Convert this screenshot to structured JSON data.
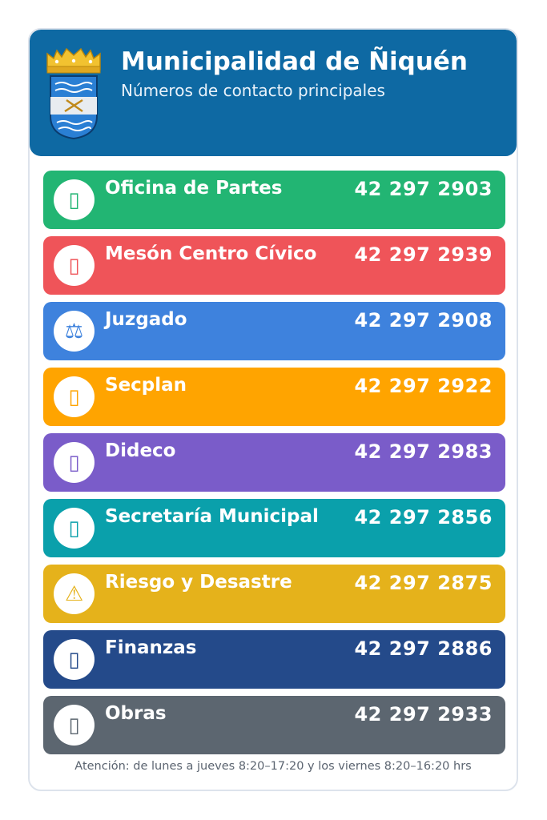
{
  "header": {
    "title": "Municipalidad de Ñiquén",
    "subtitle": "Números de contacto principales",
    "crest_icon": "municipal-crest-icon",
    "background_color": "#0e69a3"
  },
  "contacts": [
    {
      "label": "Oficina de Partes",
      "phone": "42 297 2903",
      "color": "#22b573",
      "icon": "document-icon",
      "glyph": "▯"
    },
    {
      "label": "Mesón Centro Cívico",
      "phone": "42 297 2939",
      "color": "#ef5459",
      "icon": "building-icon",
      "glyph": "▯"
    },
    {
      "label": "Juzgado",
      "phone": "42 297 2908",
      "color": "#3e82dd",
      "icon": "scales-icon",
      "glyph": "⚖"
    },
    {
      "label": "Secplan",
      "phone": "42 297 2922",
      "color": "#ffa400",
      "icon": "planning-icon",
      "glyph": "▯"
    },
    {
      "label": "Dideco",
      "phone": "42 297 2983",
      "color": "#7a5cc9",
      "icon": "community-icon",
      "glyph": "▯"
    },
    {
      "label": "Secretaría Municipal",
      "phone": "42 297 2856",
      "color": "#0aa0ab",
      "icon": "secretary-icon",
      "glyph": "▯"
    },
    {
      "label": "Riesgo y Desastre",
      "phone": "42 297 2875",
      "color": "#e5b21b",
      "icon": "warning-icon",
      "glyph": "⚠"
    },
    {
      "label": "Finanzas",
      "phone": "42 297 2886",
      "color": "#244a8a",
      "icon": "finance-icon",
      "glyph": "▯"
    },
    {
      "label": "Obras",
      "phone": "42 297 2933",
      "color": "#5c6670",
      "icon": "construction-icon",
      "glyph": "▯"
    }
  ],
  "footer": {
    "text": "Atención: de lunes a jueves 8:20–17:20 y los viernes 8:20–16:20 hrs"
  }
}
